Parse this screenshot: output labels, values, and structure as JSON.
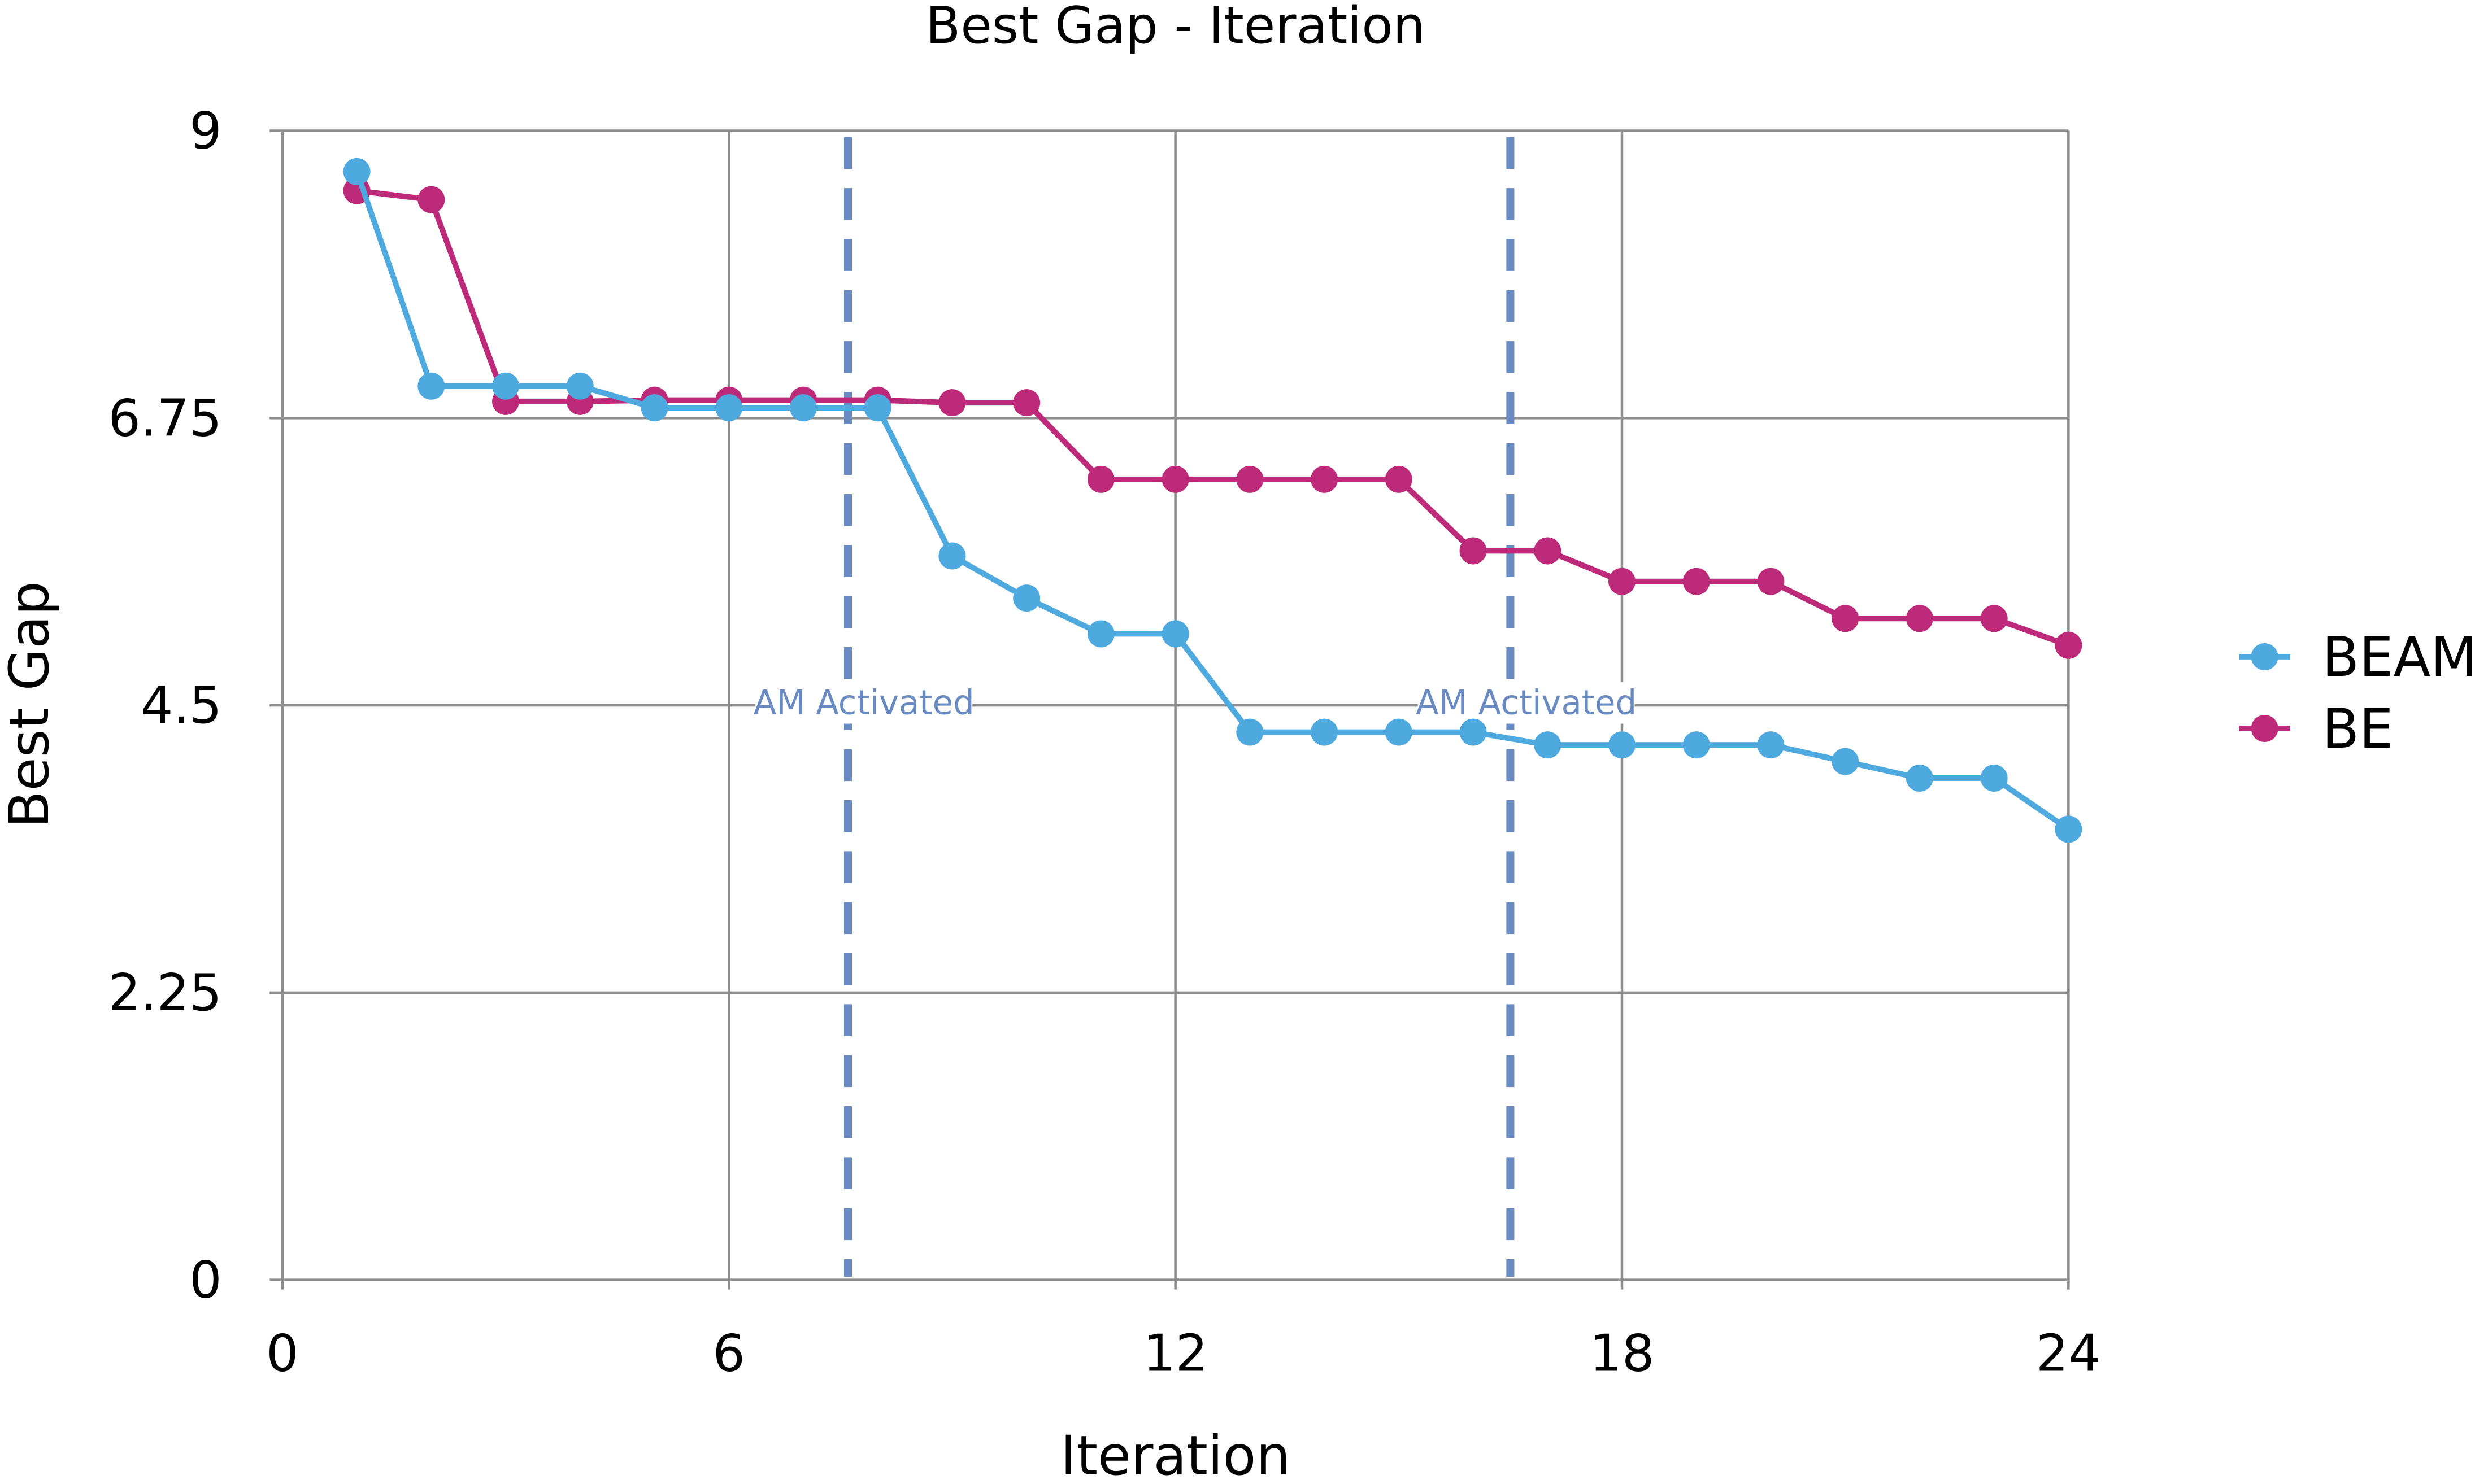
{
  "chart_data": {
    "type": "line",
    "title": "Best Gap - Iteration",
    "xlabel": "Iteration",
    "ylabel": "Best Gap",
    "xlim": [
      0,
      24
    ],
    "ylim": [
      0,
      9
    ],
    "xticks": [
      "0",
      "6",
      "12",
      "18",
      "24"
    ],
    "yticks": [
      "0",
      "2.25",
      "4.5",
      "6.75",
      "9"
    ],
    "xtick_values": [
      0,
      6,
      12,
      18,
      24
    ],
    "ytick_values": [
      0,
      2.25,
      4.5,
      6.75,
      9
    ],
    "grid": true,
    "legend_position": "right",
    "x": [
      1,
      2,
      3,
      4,
      5,
      6,
      7,
      8,
      9,
      10,
      11,
      12,
      13,
      14,
      15,
      16,
      17,
      18,
      19,
      20,
      21,
      22,
      23,
      24
    ],
    "series": [
      {
        "name": "BEAM",
        "color": "#4EA9DF",
        "values": [
          8.68,
          7.0,
          7.0,
          7.0,
          6.83,
          6.83,
          6.83,
          6.83,
          5.67,
          5.34,
          5.06,
          5.06,
          4.29,
          4.29,
          4.29,
          4.29,
          4.19,
          4.19,
          4.19,
          4.19,
          4.06,
          3.93,
          3.93,
          3.53
        ]
      },
      {
        "name": "BE",
        "color": "#BE2A7A",
        "values": [
          8.53,
          8.46,
          6.88,
          6.88,
          6.89,
          6.89,
          6.89,
          6.89,
          6.87,
          6.87,
          6.27,
          6.27,
          6.27,
          6.27,
          6.27,
          5.71,
          5.71,
          5.47,
          5.47,
          5.47,
          5.18,
          5.18,
          5.18,
          4.97
        ]
      }
    ],
    "annotations": [
      {
        "text": "AM Activated",
        "x": 7.6,
        "color": "#6A8BC2"
      },
      {
        "text": "AM Activated",
        "x": 16.5,
        "color": "#6A8BC2"
      }
    ]
  }
}
